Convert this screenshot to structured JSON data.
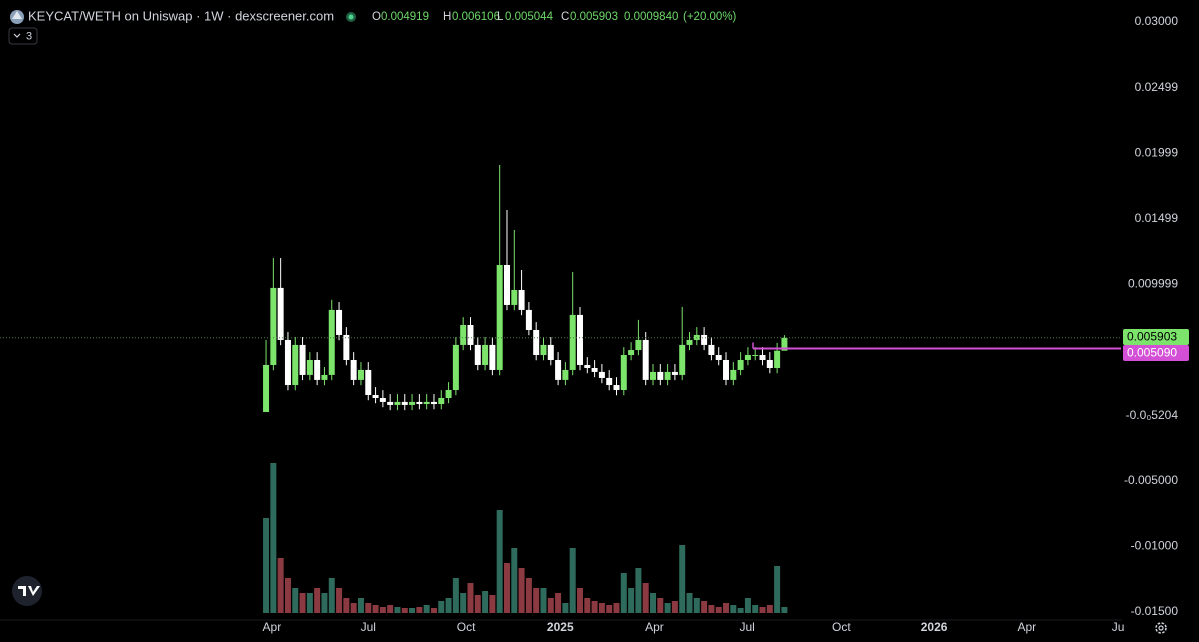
{
  "chart_data": {
    "type": "candlestick",
    "title": "KEYCAT/WETH on Uniswap · 1W · dexscreener.com",
    "indicator_count": 3,
    "ohlc_labels": [
      "O",
      "H",
      "L",
      "C"
    ],
    "change": {
      "value": 0.000984,
      "label": "0.0009840"
    },
    "change_pct": {
      "value": 20,
      "label": "(+20.00%)"
    },
    "categories": [
      null,
      null,
      null,
      null,
      null,
      null,
      null,
      null,
      null,
      null,
      null,
      null,
      null,
      null,
      null,
      null,
      null,
      null,
      null,
      null,
      null,
      null,
      null,
      null,
      null,
      null,
      null,
      null,
      null,
      null,
      null,
      null,
      null,
      null,
      null,
      null,
      null,
      null,
      null,
      null,
      null,
      null,
      null,
      null,
      null,
      null,
      null,
      null,
      null,
      null,
      null,
      null,
      null,
      null,
      null,
      null,
      null,
      null,
      null,
      null,
      null,
      null,
      null,
      null,
      null,
      null,
      null,
      null,
      null,
      null,
      null,
      null
    ],
    "open": [
      0.00024,
      0.00383,
      0.00971,
      0.00574,
      0.0023,
      0.00536,
      0.00307,
      0.00421,
      0.00269,
      0.00307,
      0.00803,
      0.00612,
      0.00421,
      0.00269,
      0.00345,
      0.00154,
      0.00131,
      0.00101,
      0.00078,
      0.00101,
      0.00078,
      0.00101,
      0.00085,
      0.00101,
      0.00085,
      0.00131,
      0.00192,
      0.00536,
      0.00688,
      0.00536,
      0.00383,
      0.00536,
      0.00345,
      0.01146,
      0.00841,
      0.00955,
      0.00803,
      0.0065,
      0.00459,
      0.00536,
      0.00421,
      0.00269,
      0.00345,
      0.00765,
      0.00383,
      0.0036,
      0.0033,
      0.00284,
      0.0023,
      0.00192,
      0.00459,
      0.00497,
      0.00574,
      0.00269,
      0.0033,
      0.00269,
      0.0033,
      0.00307,
      0.00536,
      0.00574,
      0.00612,
      0.00536,
      0.00459,
      0.00421,
      0.00269,
      0.00345,
      0.00421,
      0.00459,
      0.00459,
      0.00421,
      0.0036,
      0.004919
    ],
    "high": [
      0.00574,
      0.01199,
      0.01199,
      0.00634,
      0.00596,
      0.00596,
      0.00481,
      0.00481,
      0.00367,
      0.0088,
      0.00863,
      0.00672,
      0.00481,
      0.00405,
      0.00405,
      0.00214,
      0.00191,
      0.00161,
      0.00161,
      0.00161,
      0.00161,
      0.00161,
      0.00161,
      0.00161,
      0.00191,
      0.00252,
      0.00596,
      0.00748,
      0.00748,
      0.00596,
      0.00596,
      0.00596,
      0.01909,
      0.01566,
      0.01413,
      0.01108,
      0.00863,
      0.0071,
      0.00596,
      0.00596,
      0.00481,
      0.00405,
      0.01093,
      0.00825,
      0.00443,
      0.0042,
      0.0039,
      0.00344,
      0.0029,
      0.00519,
      0.00557,
      0.00727,
      0.00634,
      0.0039,
      0.0039,
      0.0039,
      0.0039,
      0.00826,
      0.00634,
      0.00672,
      0.00672,
      0.00596,
      0.00519,
      0.00481,
      0.00405,
      0.00481,
      0.00519,
      0.00519,
      0.00519,
      0.00481,
      0.00552,
      0.006106
    ],
    "low": [
      0.00024,
      0.00343,
      0.00534,
      0.0019,
      0.0019,
      0.00267,
      0.00267,
      0.00229,
      0.00229,
      0.00267,
      0.00572,
      0.00381,
      0.00229,
      0.00229,
      0.00114,
      0.00091,
      0.00061,
      0.00038,
      0.00038,
      0.00038,
      0.00038,
      0.00045,
      0.00045,
      0.00045,
      0.00045,
      0.00091,
      0.00152,
      0.00496,
      0.00496,
      0.00343,
      0.00343,
      0.00305,
      0.00305,
      0.00801,
      0.00801,
      0.00763,
      0.0061,
      0.00419,
      0.00419,
      0.00381,
      0.00229,
      0.00229,
      0.00305,
      0.00343,
      0.0032,
      0.0029,
      0.00244,
      0.0019,
      0.00152,
      0.00152,
      0.00419,
      0.00457,
      0.00229,
      0.00229,
      0.00229,
      0.00229,
      0.00267,
      0.00267,
      0.00496,
      0.00534,
      0.00496,
      0.00419,
      0.00381,
      0.00229,
      0.00229,
      0.00305,
      0.00381,
      0.00419,
      0.00381,
      0.0032,
      0.0032,
      0.005044
    ],
    "close": [
      0.00383,
      0.00971,
      0.00574,
      0.0023,
      0.00536,
      0.00307,
      0.00421,
      0.00269,
      0.00307,
      0.00803,
      0.00612,
      0.00421,
      0.00269,
      0.00345,
      0.00154,
      0.00131,
      0.00101,
      0.00078,
      0.00101,
      0.00078,
      0.00101,
      0.00085,
      0.00101,
      0.00085,
      0.00131,
      0.00192,
      0.00536,
      0.00688,
      0.00536,
      0.00383,
      0.00536,
      0.00345,
      0.01146,
      0.00841,
      0.00955,
      0.00803,
      0.0065,
      0.00459,
      0.00536,
      0.00421,
      0.00269,
      0.00345,
      0.00765,
      0.00383,
      0.0036,
      0.0033,
      0.00284,
      0.0023,
      0.00192,
      0.00459,
      0.00497,
      0.00574,
      0.00269,
      0.0033,
      0.00269,
      0.0033,
      0.00307,
      0.00536,
      0.00574,
      0.00612,
      0.00536,
      0.00459,
      0.00421,
      0.00269,
      0.00345,
      0.00421,
      0.00459,
      0.00459,
      0.00421,
      0.0036,
      0.004919,
      0.005903
    ],
    "volume": [
      95,
      150,
      55,
      35,
      25,
      20,
      20,
      25,
      20,
      35,
      25,
      15,
      10,
      15,
      10,
      8,
      6,
      8,
      6,
      5,
      5,
      6,
      8,
      5,
      12,
      15,
      35,
      20,
      30,
      18,
      22,
      18,
      103,
      50,
      65,
      45,
      35,
      25,
      25,
      15,
      20,
      10,
      65,
      25,
      15,
      12,
      10,
      8,
      10,
      40,
      25,
      45,
      30,
      20,
      15,
      10,
      12,
      68,
      20,
      15,
      12,
      8,
      6,
      10,
      8,
      5,
      15,
      8,
      6,
      8,
      47,
      6
    ],
    "up_color": "#7ce36b",
    "down_color": "#ffffff",
    "volume_up_color": "#2e6b5c",
    "volume_down_color": "#8a3a40",
    "price_line": {
      "value": 0.00509,
      "label": "0.005090"
    },
    "price_line_color": "#d24fd6",
    "xlim": [
      -36.44,
      117.1
    ],
    "xticks": [
      {
        "value": 0.8,
        "label": "Apr"
      },
      {
        "value": 14,
        "label": "Jul"
      },
      {
        "value": 27.4,
        "label": "Oct"
      },
      {
        "value": 40.3,
        "label": "2025"
      },
      {
        "value": 53.2,
        "label": "Apr"
      },
      {
        "value": 65.9,
        "label": "Jul"
      },
      {
        "value": 78.8,
        "label": "Oct"
      },
      {
        "value": 91.5,
        "label": "2026"
      },
      {
        "value": 104.2,
        "label": "Apr"
      },
      {
        "value": 116.7,
        "label": "Ju"
      }
    ],
    "ylim": [
      -0.01563,
      0.03168
    ],
    "yticks": [
      {
        "value": 0.03,
        "label": "0.03000"
      },
      0.02499,
      0.01999,
      0.01499,
      0.009999,
      {
        "value": -5.204e-05,
        "label": "-0.0₀5204"
      },
      {
        "value": -0.005,
        "label": "-0.005000"
      },
      {
        "value": -0.01,
        "label": "-0.01000"
      },
      {
        "value": -0.015,
        "label": "-0.01500"
      }
    ]
  }
}
